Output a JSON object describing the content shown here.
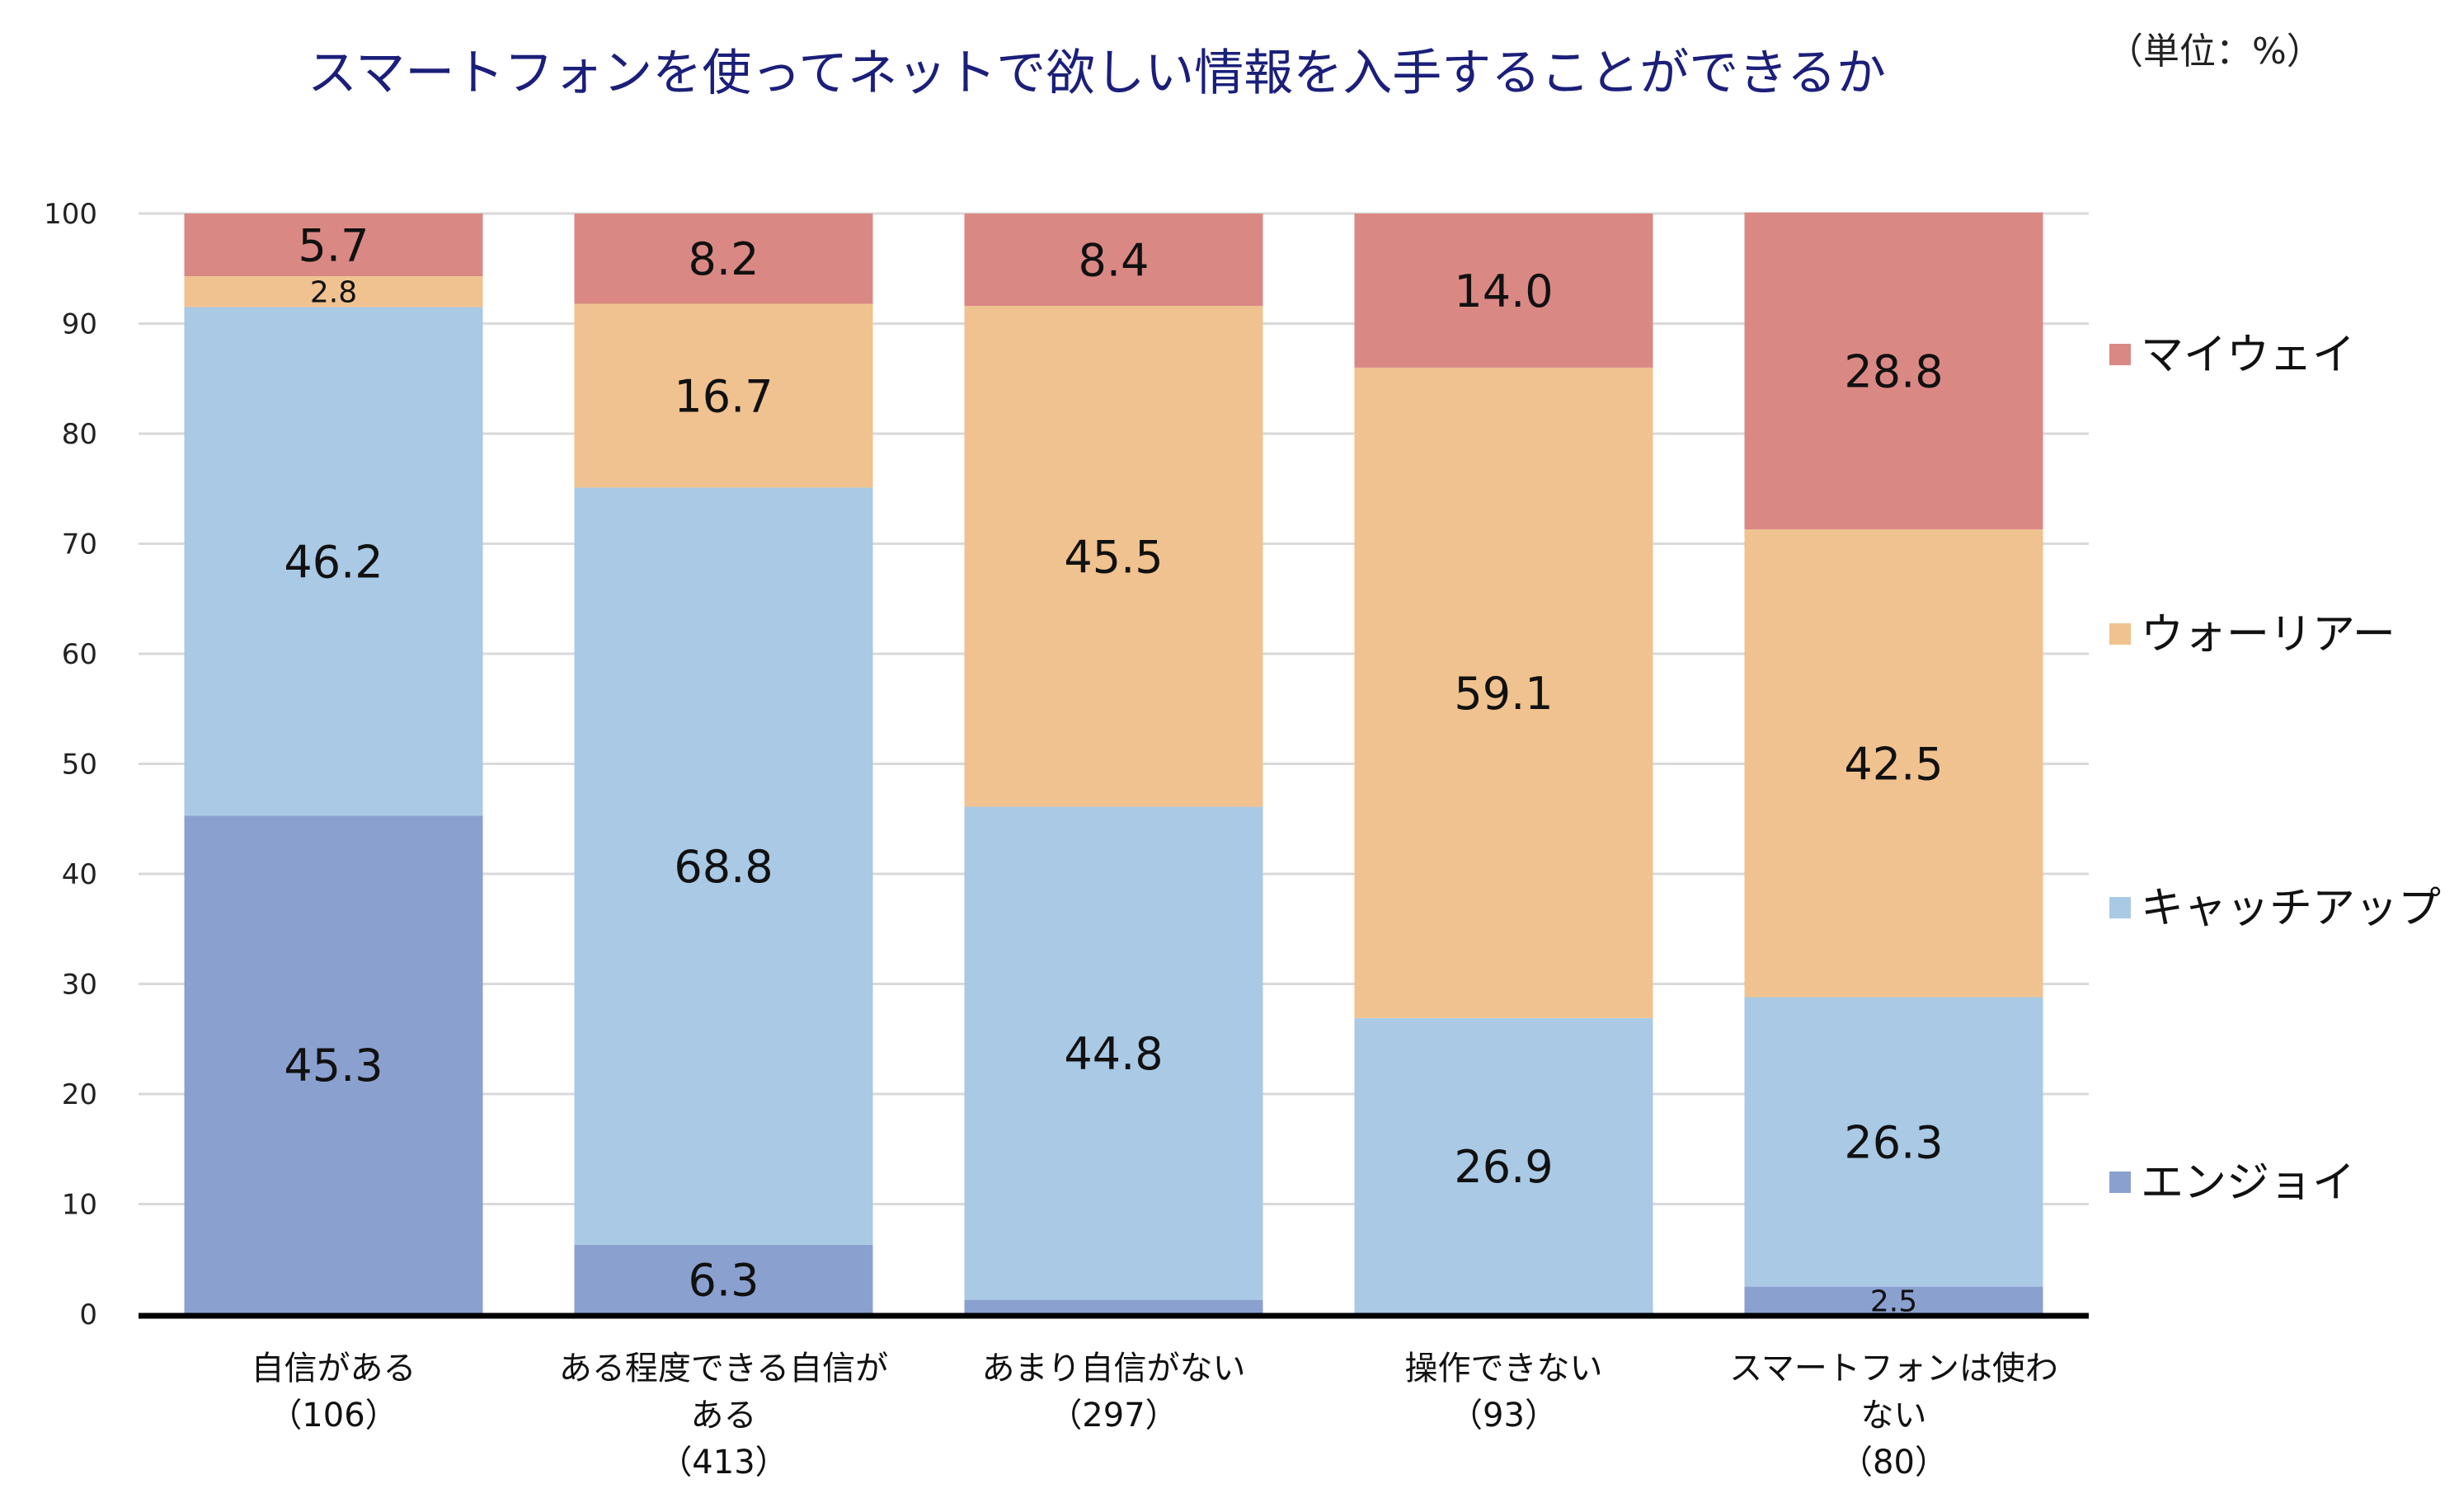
{
  "chart_data": {
    "type": "bar",
    "stacked": true,
    "title": "スマートフォンを使ってネットで欲しい情報を入手することができるか",
    "unit_label": "（単位：%）",
    "categories": [
      [
        "自信がある",
        "（106）"
      ],
      [
        "ある程度できる自信が",
        "ある",
        "（413）"
      ],
      [
        "あまり自信がない",
        "（297）"
      ],
      [
        "操作できない",
        "（93）"
      ],
      [
        "スマートフォンは使わ",
        "ない",
        "（80）"
      ]
    ],
    "series": [
      {
        "name": "エンジョイ",
        "color": "#8aa0cf",
        "values": [
          45.3,
          6.3,
          1.3,
          0,
          2.5
        ],
        "labels": [
          "45.3",
          "6.3",
          "",
          "",
          "2.5"
        ]
      },
      {
        "name": "キャッチアップ",
        "color": "#a9c9e5",
        "values": [
          46.2,
          68.8,
          44.8,
          26.9,
          26.3
        ],
        "labels": [
          "46.2",
          "68.8",
          "44.8",
          "26.9",
          "26.3"
        ]
      },
      {
        "name": "ウォーリアー",
        "color": "#f0c28f",
        "values": [
          2.8,
          16.7,
          45.5,
          59.1,
          42.5
        ],
        "labels": [
          "2.8",
          "16.7",
          "45.5",
          "59.1",
          "42.5"
        ]
      },
      {
        "name": "マイウェイ",
        "color": "#da8884",
        "values": [
          5.7,
          8.2,
          8.4,
          14.0,
          28.8
        ],
        "labels": [
          "5.7",
          "8.2",
          "8.4",
          "14.0",
          "28.8"
        ]
      }
    ],
    "ylim": [
      0,
      100
    ],
    "yticks": [
      "0",
      "10",
      "20",
      "30",
      "40",
      "50",
      "60",
      "70",
      "80",
      "90",
      "100"
    ],
    "grid": true,
    "legend": "right"
  }
}
